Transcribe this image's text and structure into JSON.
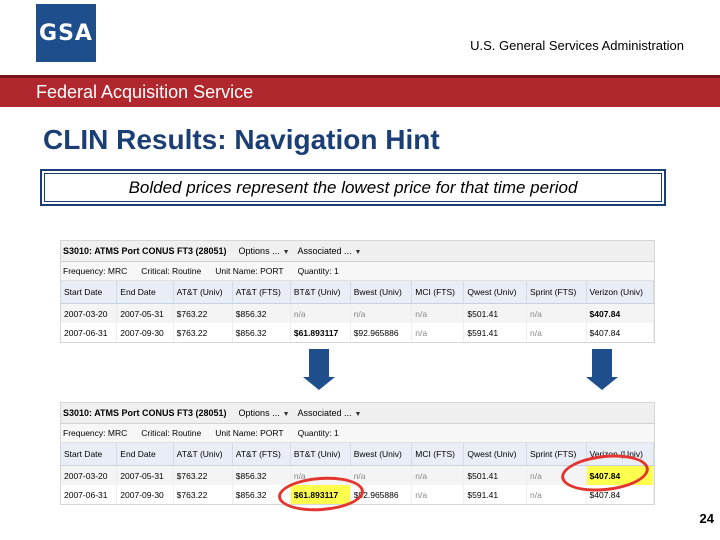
{
  "header": {
    "logo_text": "GSA",
    "agency": "U.S. General Services Administration",
    "service": "Federal Acquisition Service"
  },
  "slide": {
    "title": "CLIN Results:  Navigation Hint",
    "hint": "Bolded prices represent the lowest price for that time period",
    "page_number": "24"
  },
  "colors": {
    "brand_blue": "#1f4e8c",
    "band_red": "#b0272d",
    "highlight": "#ffff4d",
    "annotation_red": "#e3342f"
  },
  "grid": {
    "symbol": "S3010: ATMS Port CONUS FT3 (28051)",
    "options_label": "Options ...",
    "associated_label": "Associated ...",
    "frequency": "Frequency: MRC",
    "critical": "Critical: Routine",
    "unit_name": "Unit Name: PORT",
    "quantity": "Quantity: 1",
    "columns": [
      "Start Date",
      "End Date",
      "AT&T (Univ)",
      "AT&T (FTS)",
      "BT&T (Univ)",
      "Bwest (Univ)",
      "MCI (FTS)",
      "Qwest (Univ)",
      "Sprint (FTS)",
      "Verizon (Univ)"
    ],
    "rows": [
      [
        "2007-03-20",
        "2007-05-31",
        "$763.22",
        "$856.32",
        "n/a",
        "n/a",
        "n/a",
        "$501.41",
        "n/a",
        "$407.84"
      ],
      [
        "2007-06-31",
        "2007-09-30",
        "$763.22",
        "$856.32",
        "$61.893117",
        "$92.965886",
        "n/a",
        "$591.41",
        "n/a",
        "$407.84"
      ]
    ]
  }
}
